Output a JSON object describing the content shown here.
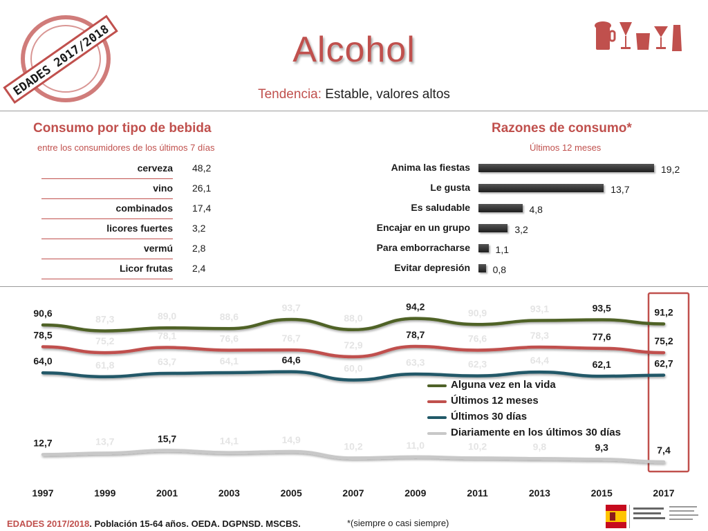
{
  "header": {
    "title": "Alcohol",
    "subtitle_lead": "Tendencia:",
    "subtitle_text": " Estable, valores altos",
    "stamp_text": "EDADES 2017/2018"
  },
  "drinks": {
    "title": "Consumo por tipo de bebida",
    "subtitle": "entre los consumidores de los últimos 7 días",
    "items": [
      {
        "label": "cerveza",
        "value": "48,2"
      },
      {
        "label": "vino",
        "value": "26,1"
      },
      {
        "label": "combinados",
        "value": "17,4"
      },
      {
        "label": "licores fuertes",
        "value": "3,2"
      },
      {
        "label": "vermú",
        "value": "2,8"
      },
      {
        "label": "Licor frutas",
        "value": "2,4"
      }
    ]
  },
  "reasons": {
    "title": "Razones de consumo*",
    "subtitle": "Últimos 12 meses",
    "items": [
      {
        "label": "Anima las fiestas",
        "value": 19.2,
        "value_label": "19,2"
      },
      {
        "label": "Le gusta",
        "value": 13.7,
        "value_label": "13,7"
      },
      {
        "label": "Es saludable",
        "value": 4.8,
        "value_label": "4,8"
      },
      {
        "label": "Encajar en un grupo",
        "value": 3.2,
        "value_label": "3,2"
      },
      {
        "label": "Para emborracharse",
        "value": 1.1,
        "value_label": "1,1"
      },
      {
        "label": "Evitar depresión",
        "value": 0.8,
        "value_label": "0,8"
      }
    ]
  },
  "chart_data": {
    "type": "line",
    "x": [
      "1997",
      "1999",
      "2001",
      "2003",
      "2005",
      "2007",
      "2009",
      "2011",
      "2013",
      "2015",
      "2017"
    ],
    "series": [
      {
        "name": "Alguna vez en la vida",
        "color": "#4f6228",
        "values": [
          90.6,
          87.3,
          89.0,
          88.6,
          93.7,
          88.0,
          94.2,
          90.9,
          93.1,
          93.5,
          91.2
        ],
        "labels": [
          "90,6",
          "87,3",
          "89,0",
          "88,6",
          "93,7",
          "88,0",
          "94,2",
          "90,9",
          "93,1",
          "93,5",
          "91,2"
        ]
      },
      {
        "name": "Últimos 12 meses",
        "color": "#c0504d",
        "values": [
          78.5,
          75.2,
          78.1,
          76.6,
          76.7,
          72.9,
          78.7,
          76.6,
          78.3,
          77.6,
          75.2
        ],
        "labels": [
          "78,5",
          "75,2",
          "78,1",
          "76,6",
          "76,7",
          "72,9",
          "78,7",
          "76,6",
          "78,3",
          "77,6",
          "75,2"
        ]
      },
      {
        "name": "Últimos 30 días",
        "color": "#215968",
        "values": [
          64.0,
          61.8,
          63.7,
          64.1,
          64.6,
          60.0,
          63.3,
          62.3,
          64.4,
          62.1,
          62.7
        ],
        "labels": [
          "64,0",
          "61,8",
          "63,7",
          "64,1",
          "64,6",
          "60,0",
          "63,3",
          "62,3",
          "64,4",
          "62,1",
          "62,7"
        ]
      },
      {
        "name": "Diariamente en los últimos 30 días",
        "color": "#c8c8c8",
        "values": [
          12.7,
          13.7,
          15.7,
          14.1,
          14.9,
          10.2,
          11.0,
          10.2,
          9.8,
          9.3,
          7.4
        ],
        "labels": [
          "12,7",
          "13,7",
          "15,7",
          "14,1",
          "14,9",
          "10,2",
          "11,0",
          "10,2",
          "9,8",
          "9,3",
          "7,4"
        ]
      }
    ],
    "emphasized_labels": {
      "0": [
        0,
        1,
        2,
        3
      ],
      "2": [
        3
      ],
      "4": [
        2
      ],
      "6": [
        0,
        1
      ],
      "9": [
        0,
        1,
        2,
        3
      ],
      "10": [
        0,
        1,
        2,
        3
      ]
    },
    "highlight_category": "2017",
    "legend_position": "center-right",
    "grid": false
  },
  "footer": {
    "source_red": "EDADES 2017/2018",
    "source_rest": ". Población 15-64 años. OEDA. DGPNSD. MSCBS.",
    "note": "*(siempre o casi siempre)"
  },
  "colors": {
    "accent": "#c0504d",
    "bars": "#2b2b2b"
  }
}
